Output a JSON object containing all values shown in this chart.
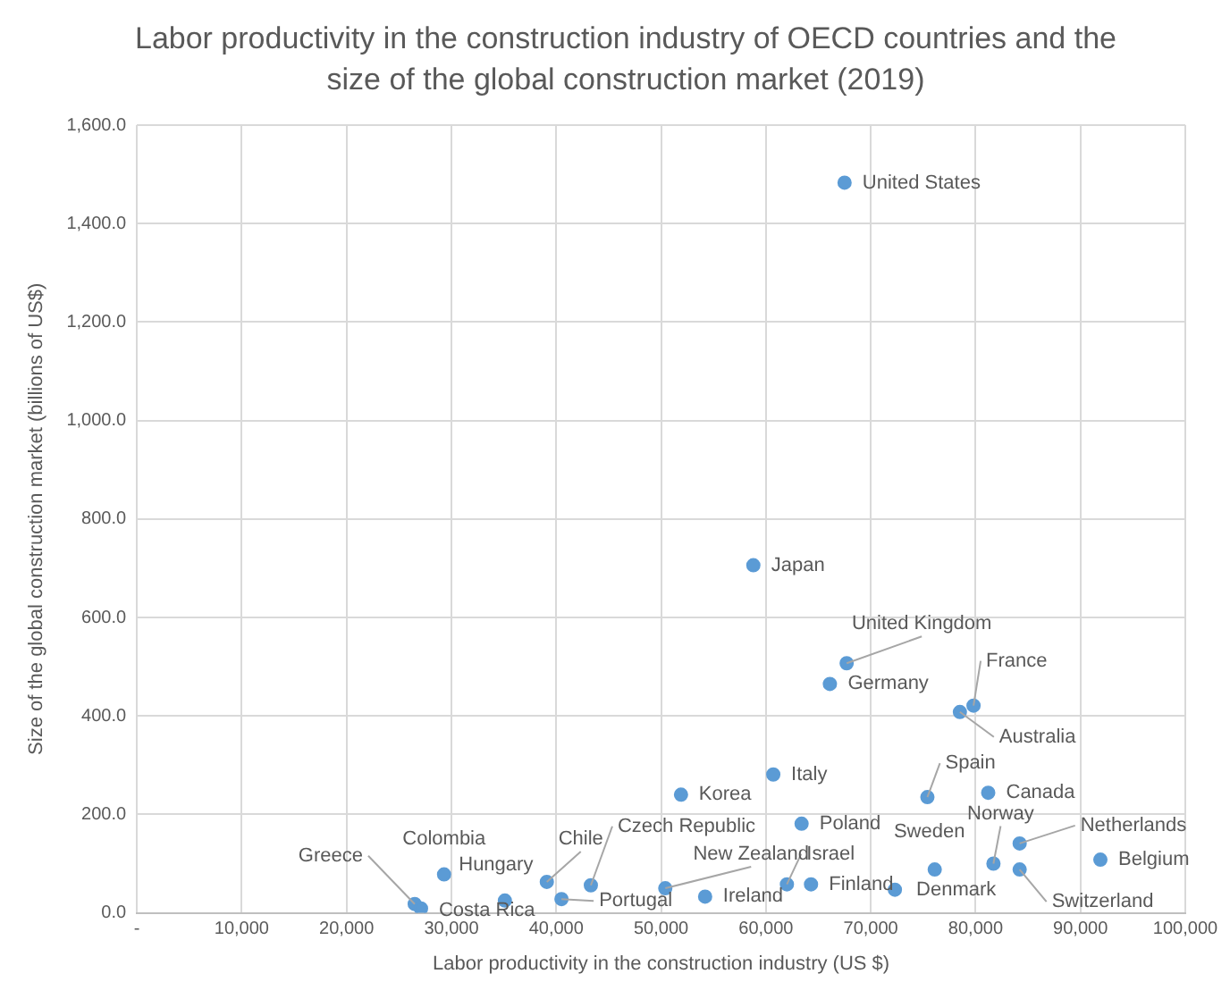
{
  "chart_data": {
    "type": "scatter",
    "title": "Labor productivity in the construction industry of OECD countries and the size of the global construction market (2019)",
    "xlabel": "Labor productivity in the construction industry (US $)",
    "ylabel": "Size of the global construction market (billions of US$)",
    "x": [
      67500,
      58800,
      67700,
      66100,
      79800,
      78500,
      75400,
      81200,
      60700,
      51900,
      63400,
      81700,
      84200,
      91900,
      84200,
      76100,
      72300,
      64300,
      62000,
      54200,
      50400,
      43300,
      39100,
      40500,
      35100,
      29300,
      26500,
      27100
    ],
    "values": [
      1483,
      706,
      507,
      465,
      421,
      408,
      235,
      244,
      281,
      240,
      181,
      100,
      141,
      108,
      88,
      88,
      47,
      58,
      58,
      33,
      50,
      56,
      63,
      28,
      25,
      78,
      18,
      9
    ],
    "color": "#5b9bd5",
    "marker": "circle",
    "grid": true,
    "legend": false,
    "xlim": [
      0,
      100000
    ],
    "xticks": [
      {
        "value": 0,
        "label": "-"
      },
      {
        "value": 10000,
        "label": "10,000"
      },
      {
        "value": 20000,
        "label": "20,000"
      },
      {
        "value": 30000,
        "label": "30,000"
      },
      {
        "value": 40000,
        "label": "40,000"
      },
      {
        "value": 50000,
        "label": "50,000"
      },
      {
        "value": 60000,
        "label": "60,000"
      },
      {
        "value": 70000,
        "label": "70,000"
      },
      {
        "value": 80000,
        "label": "80,000"
      },
      {
        "value": 90000,
        "label": "90,000"
      },
      {
        "value": 100000,
        "label": "100,000"
      }
    ],
    "ylim": [
      0,
      1600
    ],
    "yticks": [
      {
        "value": 0,
        "label": "0.0"
      },
      {
        "value": 200,
        "label": "200.0"
      },
      {
        "value": 400,
        "label": "400.0"
      },
      {
        "value": 600,
        "label": "600.0"
      },
      {
        "value": 800,
        "label": "800.0"
      },
      {
        "value": 1000,
        "label": "1,000.0"
      },
      {
        "value": 1200,
        "label": "1,200.0"
      },
      {
        "value": 1400,
        "label": "1,400.0"
      },
      {
        "value": 1600,
        "label": "1,600.0"
      }
    ],
    "annotations": [
      {
        "text": "United States",
        "x": 67500,
        "y": 1483
      },
      {
        "text": "Japan",
        "x": 58800,
        "y": 706
      },
      {
        "text": "United Kingdom",
        "x": 67700,
        "y": 507
      },
      {
        "text": "Germany",
        "x": 66100,
        "y": 465
      },
      {
        "text": "France",
        "x": 79800,
        "y": 421
      },
      {
        "text": "Australia",
        "x": 78500,
        "y": 408
      },
      {
        "text": "Spain",
        "x": 75400,
        "y": 235
      },
      {
        "text": "Canada",
        "x": 81200,
        "y": 244
      },
      {
        "text": "Italy",
        "x": 60700,
        "y": 281
      },
      {
        "text": "Korea",
        "x": 51900,
        "y": 240
      },
      {
        "text": "Poland",
        "x": 63400,
        "y": 181
      },
      {
        "text": "Norway",
        "x": 81700,
        "y": 100
      },
      {
        "text": "Netherlands",
        "x": 84200,
        "y": 141
      },
      {
        "text": "Belgium",
        "x": 91900,
        "y": 108
      },
      {
        "text": "Switzerland",
        "x": 84200,
        "y": 88
      },
      {
        "text": "Sweden",
        "x": 76100,
        "y": 88
      },
      {
        "text": "Denmark",
        "x": 72300,
        "y": 47
      },
      {
        "text": "Finland",
        "x": 64300,
        "y": 58
      },
      {
        "text": "Israel",
        "x": 62000,
        "y": 58
      },
      {
        "text": "Ireland",
        "x": 54200,
        "y": 33
      },
      {
        "text": "New Zealand",
        "x": 50400,
        "y": 50
      },
      {
        "text": "Czech Republic",
        "x": 43300,
        "y": 56
      },
      {
        "text": "Chile",
        "x": 39100,
        "y": 63
      },
      {
        "text": "Portugal",
        "x": 40500,
        "y": 28
      },
      {
        "text": "Hungary",
        "x": 35100,
        "y": 25
      },
      {
        "text": "Colombia",
        "x": 29300,
        "y": 78
      },
      {
        "text": "Greece",
        "x": 26500,
        "y": 18
      },
      {
        "text": "Costa Rica",
        "x": 27100,
        "y": 9
      }
    ]
  }
}
